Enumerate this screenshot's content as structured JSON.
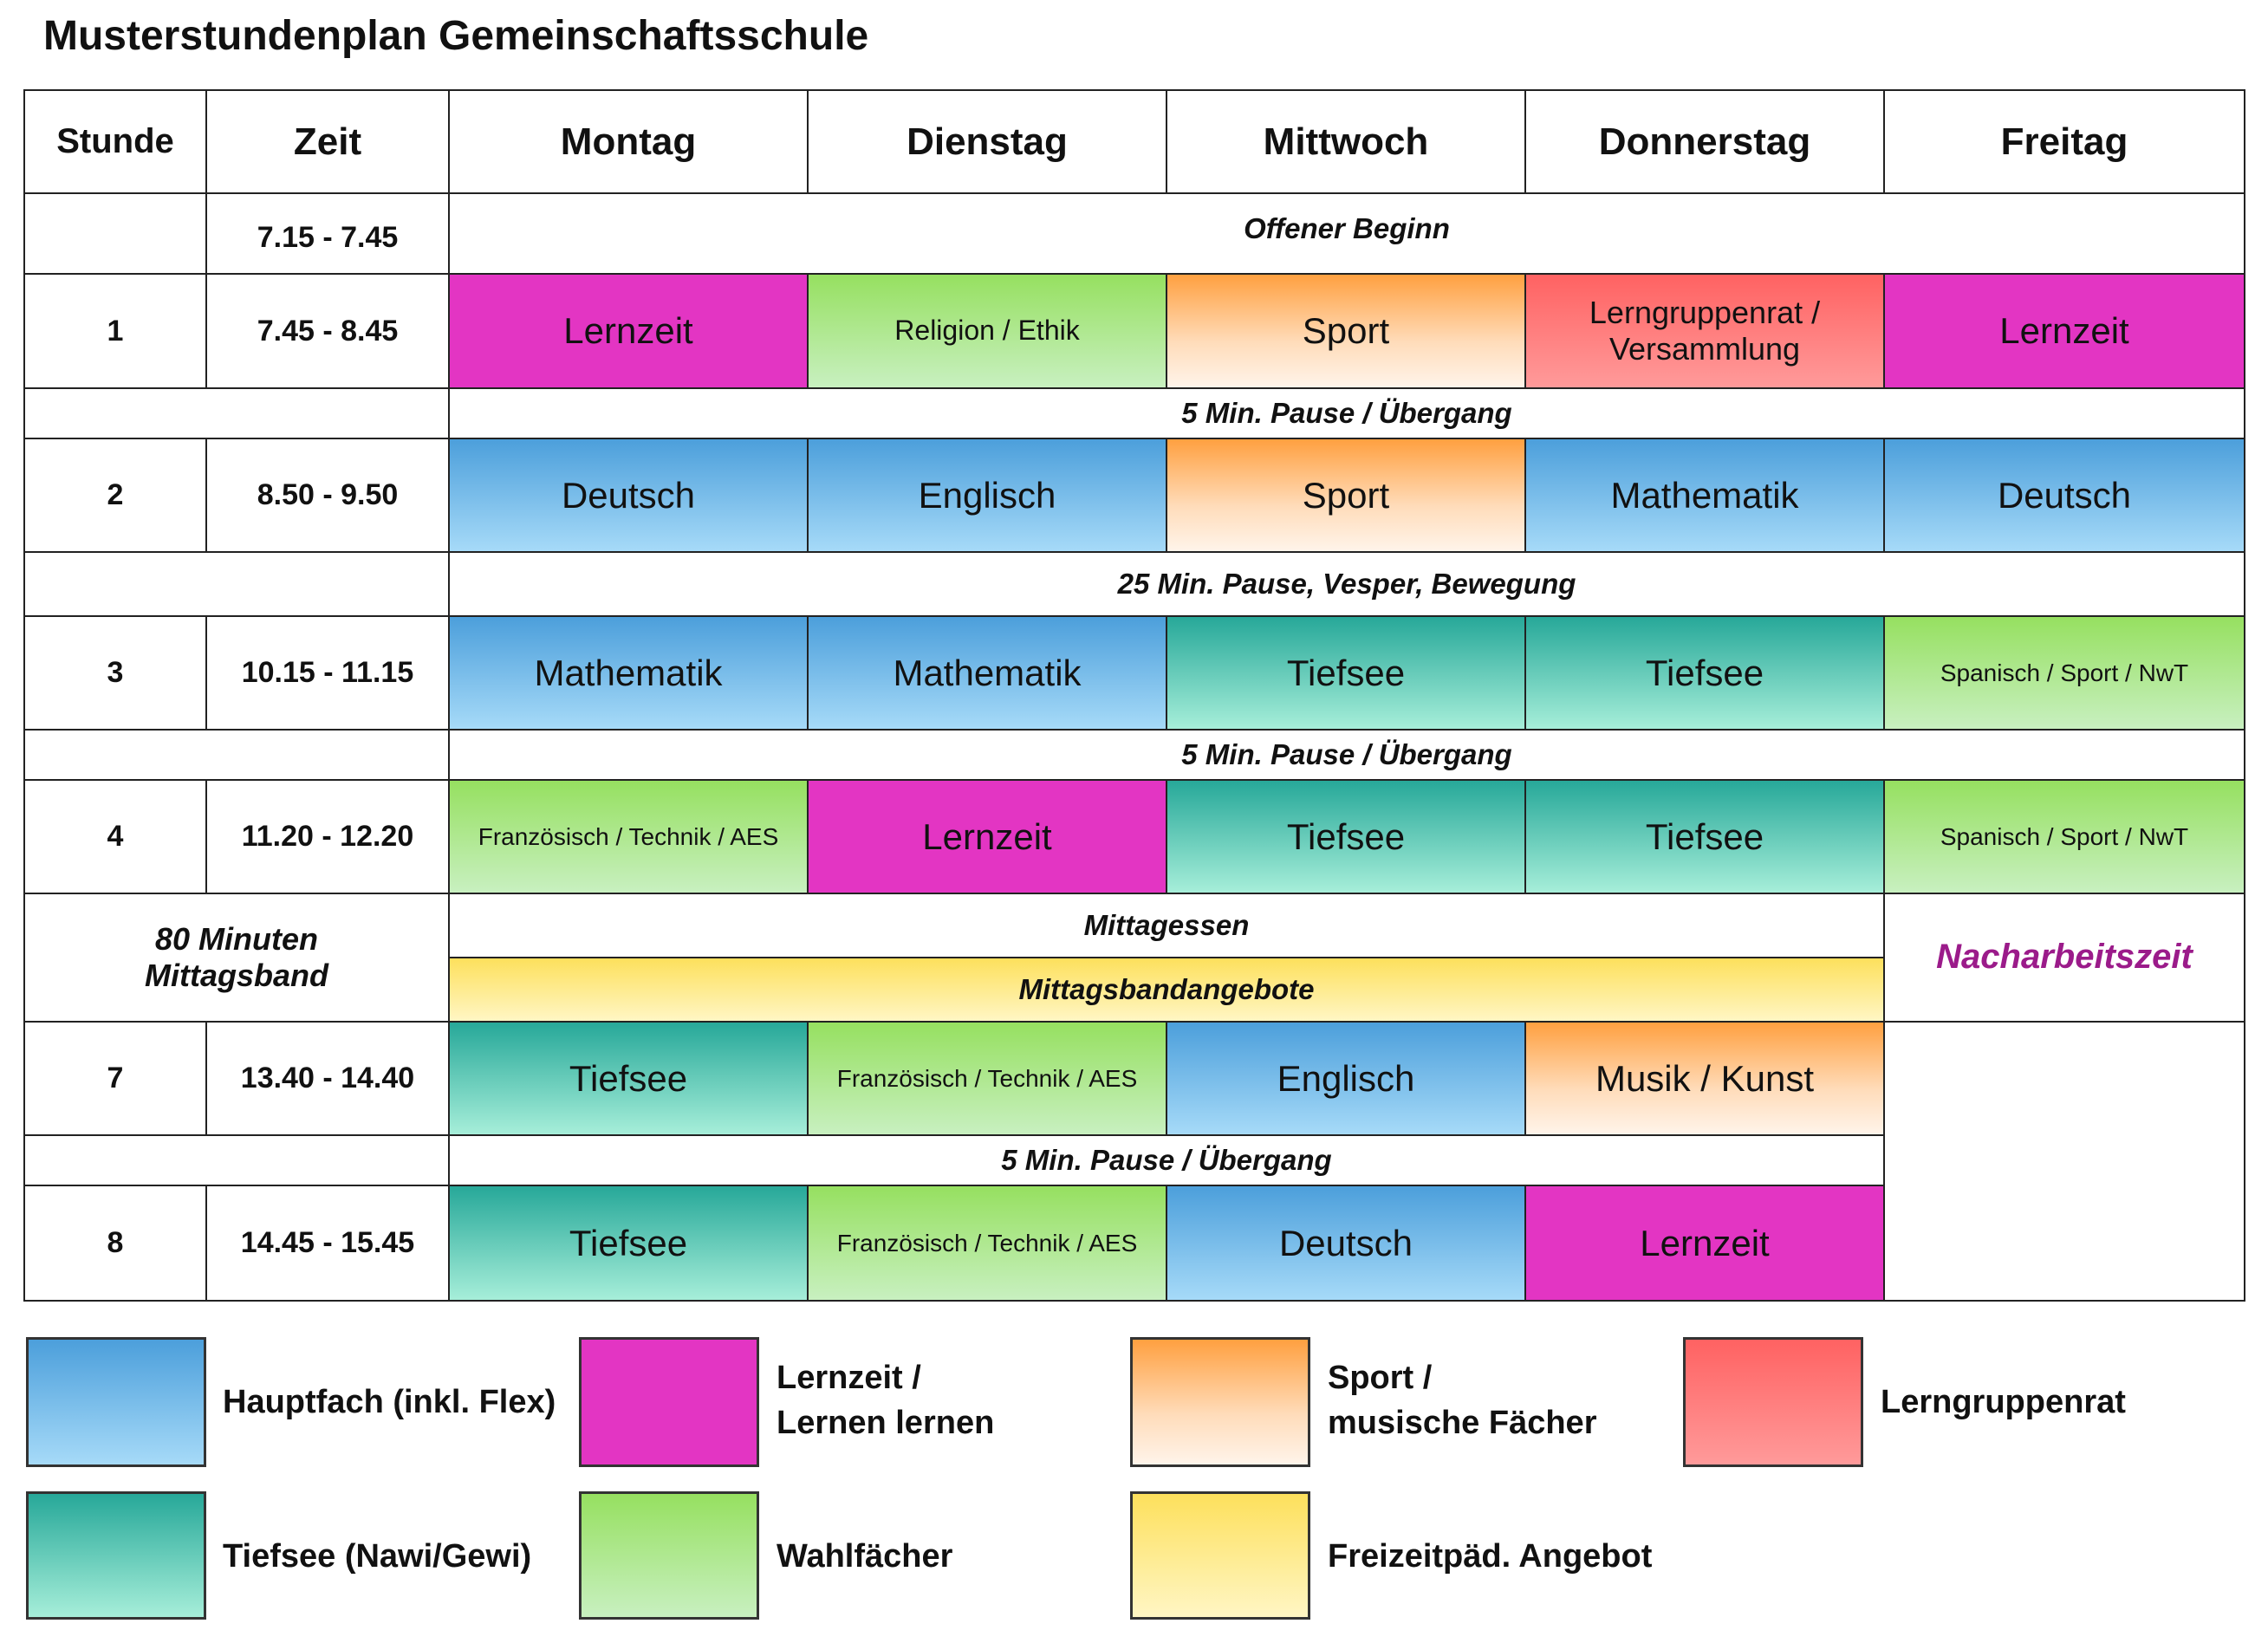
{
  "title": "Musterstundenplan Gemeinschaftsschule",
  "headers": {
    "stunde": "Stunde",
    "zeit": "Zeit",
    "days": [
      "Montag",
      "Dienstag",
      "Mittwoch",
      "Donnerstag",
      "Freitag"
    ]
  },
  "offener_beginn": {
    "time": "7.15 - 7.45",
    "label": "Offener Beginn"
  },
  "periods": [
    {
      "stunde": "1",
      "time": "7.45 - 8.45",
      "subjects": [
        {
          "label": "Lernzeit",
          "color": "magenta"
        },
        {
          "label": "Religion / Ethik",
          "color": "green"
        },
        {
          "label": "Sport",
          "color": "orange"
        },
        {
          "label": "Lerngruppenrat / Versammlung",
          "color": "red"
        },
        {
          "label": "Lernzeit",
          "color": "magenta"
        }
      ]
    },
    {
      "stunde": "2",
      "time": "8.50 - 9.50",
      "subjects": [
        {
          "label": "Deutsch",
          "color": "blue"
        },
        {
          "label": "Englisch",
          "color": "blue"
        },
        {
          "label": "Sport",
          "color": "orange"
        },
        {
          "label": "Mathematik",
          "color": "blue"
        },
        {
          "label": "Deutsch",
          "color": "blue"
        }
      ]
    },
    {
      "stunde": "3",
      "time": "10.15 - 11.15",
      "subjects": [
        {
          "label": "Mathematik",
          "color": "blue"
        },
        {
          "label": "Mathematik",
          "color": "blue"
        },
        {
          "label": "Tiefsee",
          "color": "teal"
        },
        {
          "label": "Tiefsee",
          "color": "teal"
        },
        {
          "label": "Spanisch / Sport / NwT",
          "color": "green"
        }
      ]
    },
    {
      "stunde": "4",
      "time": "11.20 - 12.20",
      "subjects": [
        {
          "label": "Französisch / Technik / AES",
          "color": "green"
        },
        {
          "label": "Lernzeit",
          "color": "magenta"
        },
        {
          "label": "Tiefsee",
          "color": "teal"
        },
        {
          "label": "Tiefsee",
          "color": "teal"
        },
        {
          "label": "Spanisch / Sport / NwT",
          "color": "green"
        }
      ]
    },
    {
      "stunde": "7",
      "time": "13.40 - 14.40",
      "subjects": [
        {
          "label": "Tiefsee",
          "color": "teal"
        },
        {
          "label": "Französisch / Technik / AES",
          "color": "green"
        },
        {
          "label": "Englisch",
          "color": "blue"
        },
        {
          "label": "Musik / Kunst",
          "color": "orange"
        }
      ]
    },
    {
      "stunde": "8",
      "time": "14.45 - 15.45",
      "subjects": [
        {
          "label": "Tiefsee",
          "color": "teal"
        },
        {
          "label": "Französisch / Technik / AES",
          "color": "green"
        },
        {
          "label": "Deutsch",
          "color": "blue"
        },
        {
          "label": "Lernzeit",
          "color": "magenta"
        }
      ]
    }
  ],
  "pauses": {
    "p1": "5 Min. Pause / Übergang",
    "p2": "25 Min. Pause, Vesper, Bewegung",
    "p3": "5 Min. Pause / Übergang",
    "p4": "5 Min. Pause / Übergang"
  },
  "mittagsband": {
    "label_line1": "80 Minuten",
    "label_line2": "Mittagsband",
    "mittagessen": "Mittagessen",
    "angebote": "Mittagsbandangebote",
    "nacharbeitszeit": "Nacharbeitszeit",
    "nacharbeitszeit_color": "#9b1b8a"
  },
  "colors": {
    "blue": "#4c9fdb",
    "magenta": "#e335c3",
    "orange": "#ffa040",
    "red": "#ff6262",
    "teal": "#27a899",
    "green": "#96e060",
    "yellow": "#fde05c"
  },
  "legend": [
    {
      "color": "blue",
      "line1": "Hauptfach (inkl. Flex)",
      "line2": ""
    },
    {
      "color": "magenta",
      "line1": "Lernzeit /",
      "line2": "Lernen lernen"
    },
    {
      "color": "orange",
      "line1": "Sport /",
      "line2": "musische Fächer"
    },
    {
      "color": "red",
      "line1": "Lerngruppenrat",
      "line2": ""
    },
    {
      "color": "teal",
      "line1": "Tiefsee (Nawi/Gewi)",
      "line2": ""
    },
    {
      "color": "green",
      "line1": "Wahlfächer",
      "line2": ""
    },
    {
      "color": "yellow",
      "line1": "Freizeitpäd. Angebot",
      "line2": ""
    }
  ]
}
